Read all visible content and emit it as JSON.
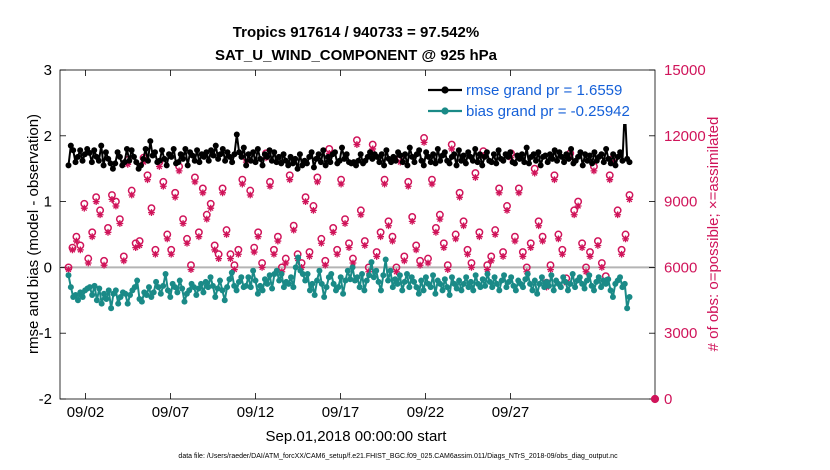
{
  "chart_data": {
    "type": "line",
    "title_line1": "Tropics 917614 / 940733 = 97.542%",
    "title_line2": "SAT_U_WIND_COMPONENT @ 925 hPa",
    "ylabel_left": "rmse and bias (model - observation)",
    "ylabel_right": "# of obs: o=possible; ×=assimilated",
    "xlabel": "Sep.01,2018 00:00:00 start",
    "footnote": "data file: /Users/raeder/DAI/ATM_forcXX/CAM6_setup/f.e21.FHIST_BGC.f09_025.CAM6assim.011/Diags_NTrS_2018-09/obs_diag_output.nc",
    "x_range_days": [
      0.5,
      35.5
    ],
    "ylim_left": [
      -2,
      3
    ],
    "ylim_right": [
      0,
      15000
    ],
    "left_ticks": [
      "-2",
      "-1",
      "0",
      "1",
      "2",
      "3"
    ],
    "right_ticks": [
      "0",
      "3000",
      "6000",
      "9000",
      "12000",
      "15000"
    ],
    "x_ticks": [
      {
        "day": 2,
        "label": "09/02"
      },
      {
        "day": 7,
        "label": "09/07"
      },
      {
        "day": 12,
        "label": "09/12"
      },
      {
        "day": 17,
        "label": "09/17"
      },
      {
        "day": 22,
        "label": "09/22"
      },
      {
        "day": 27,
        "label": "09/27"
      }
    ],
    "legend": [
      {
        "name": "rmse grand pr = 1.6559",
        "color": "#000000"
      },
      {
        "name": "bias grand pr = -0.25942",
        "color": "#1a8a87"
      }
    ],
    "colors": {
      "rmse": "#000000",
      "bias": "#1a8a87",
      "obs": "#d0145a",
      "zero_line": "#b4b4b4"
    },
    "rmse": [
      1.55,
      1.85,
      1.78,
      1.6,
      1.68,
      1.78,
      1.62,
      1.72,
      1.8,
      1.74,
      1.6,
      1.78,
      1.68,
      1.62,
      1.85,
      1.55,
      1.75,
      1.65,
      1.58,
      1.5,
      1.58,
      1.75,
      1.68,
      1.55,
      1.6,
      1.8,
      1.62,
      1.78,
      1.68,
      1.6,
      1.5,
      1.55,
      1.65,
      1.8,
      1.62,
      1.92,
      1.7,
      1.75,
      1.6,
      1.62,
      1.78,
      1.65,
      1.55,
      1.72,
      1.68,
      1.8,
      1.58,
      1.6,
      1.72,
      1.65,
      1.8,
      1.55,
      1.75,
      1.7,
      1.62,
      1.78,
      1.6,
      1.72,
      1.68,
      1.75,
      1.62,
      1.78,
      1.7,
      1.85,
      1.65,
      1.72,
      1.8,
      1.62,
      1.75,
      1.68,
      1.6,
      1.72,
      2.02,
      1.75,
      1.68,
      1.82,
      1.55,
      1.72,
      1.62,
      1.75,
      1.6,
      1.8,
      1.65,
      1.55,
      1.72,
      1.68,
      1.78,
      1.62,
      1.75,
      1.6,
      1.68,
      1.58,
      1.72,
      1.62,
      1.55,
      1.68,
      1.58,
      1.65,
      1.5,
      1.72,
      1.55,
      1.62,
      1.58,
      1.68,
      1.75,
      1.52,
      1.65,
      1.72,
      1.6,
      1.78,
      1.55,
      1.68,
      1.6,
      1.72,
      1.75,
      1.58,
      1.62,
      1.82,
      1.65,
      1.72,
      1.6,
      1.58,
      1.6,
      1.55,
      1.62,
      1.72,
      1.58,
      1.62,
      1.68,
      1.75,
      1.65,
      1.72,
      1.68,
      1.6,
      1.72,
      1.55,
      1.78,
      1.65,
      1.6,
      1.68,
      1.62,
      1.75,
      1.7,
      1.6,
      1.72,
      1.55,
      1.82,
      1.68,
      1.6,
      1.72,
      1.78,
      1.62,
      1.55,
      1.75,
      1.68,
      1.6,
      1.72,
      1.58,
      1.8,
      1.62,
      1.7,
      1.75,
      1.62,
      1.58,
      1.68,
      1.72,
      1.55,
      1.78,
      1.62,
      1.7,
      1.58,
      1.75,
      1.68,
      1.62,
      1.8,
      1.6,
      1.72,
      1.55,
      1.68,
      1.75,
      1.62,
      1.6,
      1.72,
      1.58,
      1.78,
      1.65,
      1.62,
      1.72,
      1.68,
      1.75,
      1.6,
      1.58,
      1.7,
      1.65,
      1.72,
      1.6,
      1.82,
      1.58,
      1.68,
      1.72,
      1.62,
      1.75,
      1.55,
      1.68,
      1.7,
      1.6,
      1.72,
      1.65,
      1.78,
      1.62,
      1.75,
      1.68,
      1.6,
      1.72,
      1.65,
      1.8,
      1.58,
      1.62,
      1.68,
      1.75,
      1.55,
      1.72,
      1.62,
      1.7,
      1.58,
      1.75,
      1.62,
      1.68,
      1.72,
      1.6,
      1.8,
      1.65,
      1.58,
      1.72,
      1.55,
      1.68,
      1.75,
      1.62,
      2.42,
      1.65,
      1.6
    ],
    "bias": [
      -0.12,
      -0.3,
      -0.45,
      -0.42,
      -0.5,
      -0.38,
      -0.45,
      -0.35,
      -0.32,
      -0.3,
      -0.42,
      -0.28,
      -0.5,
      -0.32,
      -0.55,
      -0.4,
      -0.48,
      -0.35,
      -0.62,
      -0.4,
      -0.35,
      -0.55,
      -0.45,
      -0.38,
      -0.4,
      -0.55,
      -0.42,
      -0.35,
      -0.3,
      -0.2,
      -0.48,
      -0.52,
      -0.38,
      -0.42,
      -0.3,
      -0.45,
      -0.38,
      -0.22,
      -0.3,
      -0.4,
      -0.28,
      -0.1,
      -0.35,
      -0.45,
      -0.25,
      -0.3,
      -0.38,
      -0.2,
      -0.32,
      -0.52,
      -0.4,
      -0.35,
      -0.25,
      -0.3,
      -0.42,
      -0.32,
      -0.25,
      -0.38,
      -0.22,
      -0.3,
      -0.15,
      -0.28,
      -0.45,
      -0.32,
      -0.2,
      -0.35,
      -0.5,
      -0.3,
      -0.18,
      -0.08,
      -0.28,
      -0.35,
      -0.22,
      -0.15,
      -0.3,
      -0.28,
      -0.15,
      -0.3,
      -0.05,
      -0.2,
      -0.4,
      -0.28,
      -0.35,
      -0.18,
      -0.25,
      -0.12,
      -0.32,
      -0.1,
      -0.05,
      -0.2,
      -0.1,
      -0.3,
      -0.22,
      -0.25,
      -0.15,
      -0.3,
      0.0,
      0.15,
      -0.05,
      -0.1,
      -0.2,
      -0.1,
      -0.35,
      -0.25,
      -0.42,
      -0.2,
      -0.05,
      -0.25,
      -0.45,
      -0.3,
      -0.15,
      -0.1,
      -0.25,
      -0.35,
      -0.3,
      -0.15,
      -0.4,
      -0.2,
      -0.05,
      -0.18,
      0.0,
      -0.2,
      -0.15,
      -0.3,
      -0.1,
      -0.35,
      -0.2,
      -0.12,
      0.08,
      -0.15,
      -0.05,
      -0.22,
      -0.35,
      -0.12,
      0.12,
      -0.2,
      -0.05,
      -0.3,
      -0.18,
      -0.25,
      -0.12,
      -0.35,
      -0.22,
      -0.1,
      -0.3,
      -0.15,
      -0.22,
      -0.3,
      -0.4,
      -0.2,
      -0.35,
      -0.15,
      -0.25,
      -0.3,
      -0.12,
      -0.4,
      -0.2,
      -0.25,
      -0.35,
      -0.18,
      -0.3,
      -0.42,
      -0.15,
      -0.25,
      -0.32,
      -0.2,
      -0.35,
      -0.25,
      -0.15,
      -0.3,
      -0.22,
      -0.35,
      -0.12,
      -0.25,
      -0.3,
      -0.18,
      -0.28,
      -0.1,
      -0.22,
      -0.3,
      -0.15,
      -0.25,
      -0.35,
      -0.2,
      -0.12,
      -0.3,
      -0.22,
      -0.15,
      -0.28,
      -0.35,
      -0.2,
      -0.25,
      -0.3,
      -0.18,
      -0.1,
      -0.25,
      -0.35,
      -0.2,
      -0.4,
      -0.25,
      -0.15,
      -0.3,
      -0.22,
      -0.28,
      -0.12,
      -0.35,
      -0.2,
      -0.25,
      -0.3,
      -0.15,
      -0.22,
      -0.35,
      -0.25,
      -0.1,
      -0.3,
      -0.2,
      -0.15,
      -0.25,
      -0.32,
      -0.2,
      -0.12,
      -0.28,
      -0.35,
      -0.22,
      -0.15,
      -0.3,
      -0.2,
      -0.25,
      -0.18,
      -0.35,
      -0.45,
      -0.25,
      -0.2,
      -0.15,
      -0.3,
      -0.25,
      -0.62,
      -0.45
    ],
    "obs_possible": [
      6000,
      6900,
      7400,
      7000,
      8900,
      6400,
      7600,
      9200,
      8600,
      6300,
      7800,
      9300,
      9000,
      8200,
      6500,
      10900,
      9500,
      7100,
      7200,
      11000,
      10200,
      8700,
      6800,
      10800,
      9900,
      7500,
      6800,
      9400,
      10600,
      8200,
      7300,
      6100,
      10100,
      7600,
      9600,
      8400,
      8900,
      7000,
      6600,
      9600,
      7700,
      6600,
      6100,
      6800,
      10000,
      11000,
      9500,
      6900,
      7600,
      6200,
      11200,
      9900,
      6800,
      7400,
      6000,
      6400,
      10200,
      7900,
      6600,
      6200,
      9200,
      6700,
      8800,
      10100,
      7300,
      6300,
      11400,
      7800,
      6800,
      10000,
      8200,
      7100,
      6400,
      11800,
      8600,
      7200,
      6000,
      11600,
      6700,
      7600,
      10000,
      8100,
      7400,
      6000,
      11000,
      6500,
      9900,
      8300,
      7000,
      6300,
      11900,
      6400,
      10000,
      7800,
      8400,
      7100,
      6100,
      11600,
      7500,
      9400,
      8100,
      6800,
      6200,
      10300,
      7600,
      11300,
      6100,
      6500,
      7700,
      9600,
      6700,
      8800,
      11200,
      7400,
      9600,
      6700,
      6000,
      7100,
      10500,
      8100,
      7400,
      5300,
      6100,
      10200,
      7500,
      6800,
      5500,
      11200,
      8600,
      9000,
      7100,
      6000,
      6700,
      10600,
      7200,
      6200,
      5600,
      10200,
      11000,
      8600,
      6800,
      7500,
      9300
    ],
    "obs_assimilated": [
      5900,
      6800,
      7200,
      6800,
      8700,
      6200,
      7400,
      9000,
      8400,
      6100,
      7600,
      9100,
      8800,
      8000,
      6300,
      10700,
      9300,
      6900,
      7000,
      10800,
      10000,
      8500,
      6600,
      10600,
      9700,
      7300,
      6600,
      9200,
      10400,
      8000,
      7100,
      5900,
      9900,
      7400,
      9400,
      8200,
      8700,
      6800,
      6400,
      9400,
      7500,
      6400,
      5900,
      6600,
      9800,
      10800,
      9300,
      6700,
      7400,
      6000,
      11000,
      9700,
      6600,
      7200,
      5800,
      6200,
      10000,
      7700,
      6400,
      6000,
      9000,
      6500,
      8600,
      9900,
      7100,
      6100,
      11200,
      7600,
      6600,
      9800,
      8000,
      6900,
      6200,
      11600,
      8400,
      7000,
      5800,
      11400,
      6500,
      7400,
      9800,
      7900,
      7200,
      5800,
      10800,
      6300,
      9700,
      8100,
      6800,
      6100,
      11700,
      6200,
      9800,
      7600,
      8200,
      6900,
      5900,
      11400,
      7300,
      9200,
      7900,
      6600,
      6000,
      10100,
      7400,
      11100,
      5900,
      6300,
      7500,
      9400,
      6500,
      8600,
      11000,
      7200,
      9400,
      6500,
      5800,
      6900,
      10300,
      7900,
      7200,
      5100,
      5900,
      10000,
      7300,
      6600,
      5300,
      11000,
      8400,
      8800,
      6900,
      5800,
      6500,
      10400,
      7000,
      6000,
      5400,
      10000,
      10800,
      8400,
      6600,
      7300,
      9100
    ],
    "obs_last_value": 0
  }
}
